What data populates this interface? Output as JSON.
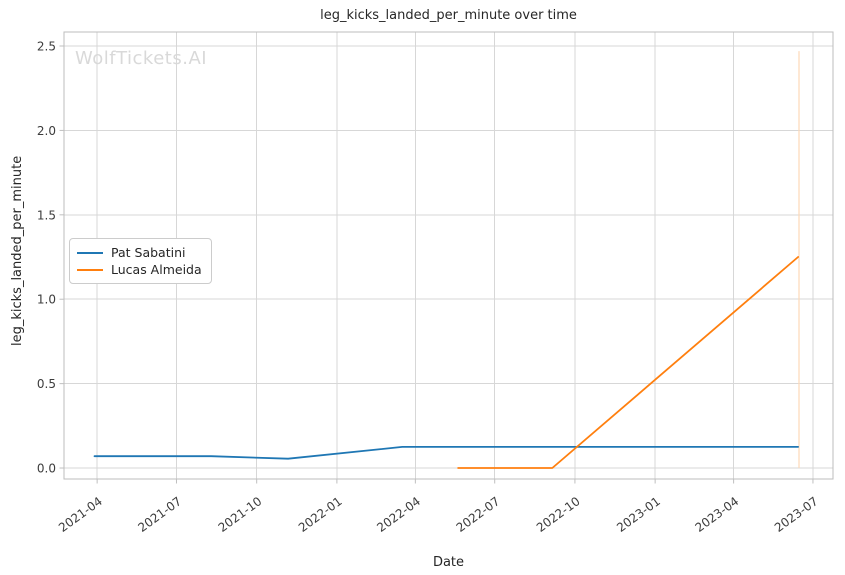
{
  "watermark": "WolfTickets.AI",
  "chart_data": {
    "type": "line",
    "title": "leg_kicks_landed_per_minute over time",
    "xlabel": "Date",
    "ylabel": "leg_kicks_landed_per_minute",
    "grid": true,
    "legend_position": "center-left",
    "x_ticks": [
      "2021-04",
      "2021-07",
      "2021-10",
      "2022-01",
      "2022-04",
      "2022-07",
      "2022-10",
      "2023-01",
      "2023-04",
      "2023-07"
    ],
    "x_tick_rotation": 36,
    "y_ticks": [
      0.0,
      0.5,
      1.0,
      1.5,
      2.0,
      2.5
    ],
    "xlim": [
      "2021-02-22",
      "2023-07-24"
    ],
    "ylim": [
      -0.065,
      2.583
    ],
    "series": [
      {
        "name": "Pat Sabatini",
        "color": "#1f77b4",
        "points": [
          [
            "2021-03-29",
            0.07
          ],
          [
            "2021-08-10",
            0.07
          ],
          [
            "2021-11-06",
            0.055
          ],
          [
            "2022-03-17",
            0.125
          ],
          [
            "2023-06-14",
            0.125
          ]
        ]
      },
      {
        "name": "Lucas Almeida",
        "color": "#ff7f0e",
        "points": [
          [
            "2022-05-20",
            0.0
          ],
          [
            "2022-09-05",
            0.0
          ],
          [
            "2023-06-14",
            1.25
          ]
        ]
      }
    ],
    "annotations": [
      {
        "type": "vline",
        "x": "2023-06-15",
        "y0": 0.0,
        "y1": 2.47,
        "color": "#fcd9b8"
      }
    ],
    "style": {
      "grid_color": "#d7d7d7",
      "spine_color": "#bdbdbd",
      "tick_color": "#bfbfbf",
      "text_color": "#262626",
      "tick_label_color": "#3c3c3c",
      "watermark_color": "#d9d9d9",
      "line_width": 1.8
    }
  }
}
